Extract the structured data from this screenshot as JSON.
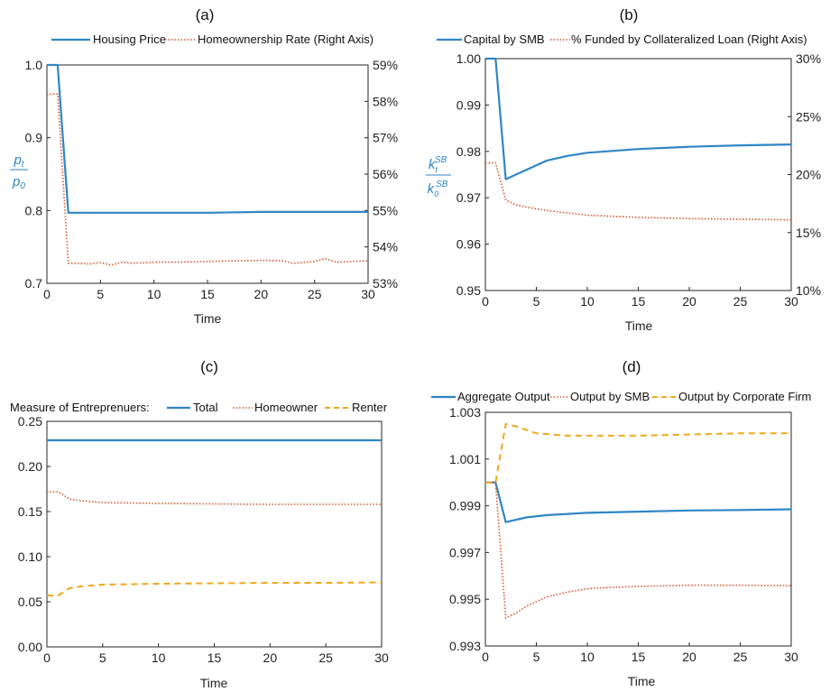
{
  "chart_data": [
    {
      "id": "a",
      "type": "line",
      "panel_label": "(a)",
      "xlabel": "Time",
      "ylabel": "p_t / p_0",
      "xlim": [
        0,
        30
      ],
      "xticks": [
        "0",
        "5",
        "10",
        "15",
        "20",
        "25",
        "30"
      ],
      "ylim": [
        0.7,
        1.0
      ],
      "yticks": [
        "0.7",
        "0.8",
        "0.9",
        "1.0"
      ],
      "y2lim": [
        53,
        59
      ],
      "y2ticks": [
        "53%",
        "54%",
        "55%",
        "56%",
        "57%",
        "58%",
        "59%"
      ],
      "legend": "top",
      "series": [
        {
          "name": "Housing Price",
          "axis": "left",
          "style": "solid",
          "color": "#2f86c6",
          "x": [
            0,
            1,
            2,
            5,
            10,
            15,
            20,
            25,
            30
          ],
          "y": [
            1.0,
            1.0,
            0.797,
            0.797,
            0.797,
            0.797,
            0.798,
            0.798,
            0.798
          ]
        },
        {
          "name": "Homeownership Rate (Right Axis)",
          "axis": "right",
          "style": "dotted",
          "color": "#d9582b",
          "x": [
            0,
            1,
            2,
            3,
            4,
            5,
            6,
            7,
            8,
            10,
            12,
            15,
            18,
            20,
            22,
            23,
            25,
            26,
            27,
            30
          ],
          "y": [
            58.2,
            58.2,
            53.55,
            53.55,
            53.53,
            53.57,
            53.5,
            53.58,
            53.55,
            53.58,
            53.58,
            53.6,
            53.62,
            53.63,
            53.62,
            53.55,
            53.6,
            53.68,
            53.58,
            53.62
          ]
        }
      ]
    },
    {
      "id": "b",
      "type": "line",
      "panel_label": "(b)",
      "xlabel": "Time",
      "ylabel": "k_t^SB / k_0^SB",
      "xlim": [
        0,
        30
      ],
      "xticks": [
        "0",
        "5",
        "10",
        "15",
        "20",
        "25",
        "30"
      ],
      "ylim": [
        0.95,
        1.0
      ],
      "yticks": [
        "0.95",
        "0.96",
        "0.97",
        "0.98",
        "0.99",
        "1.00"
      ],
      "y2lim": [
        10,
        30
      ],
      "y2ticks": [
        "10%",
        "15%",
        "20%",
        "25%",
        "30%"
      ],
      "legend": "top",
      "series": [
        {
          "name": "Capital by SMB",
          "axis": "left",
          "style": "solid",
          "color": "#2f86c6",
          "x": [
            0,
            1,
            2,
            4,
            6,
            8,
            10,
            15,
            20,
            25,
            30
          ],
          "y": [
            1.0,
            1.0,
            0.974,
            0.976,
            0.978,
            0.979,
            0.9797,
            0.9805,
            0.981,
            0.9813,
            0.9815
          ]
        },
        {
          "name": "% Funded by Collateralized Loan (Right Axis)",
          "axis": "right",
          "style": "dotted",
          "color": "#d9582b",
          "x": [
            0,
            1,
            2,
            3,
            4,
            6,
            8,
            10,
            15,
            20,
            25,
            30
          ],
          "y": [
            21.0,
            21.0,
            17.8,
            17.4,
            17.2,
            16.9,
            16.7,
            16.5,
            16.3,
            16.2,
            16.15,
            16.1
          ]
        }
      ]
    },
    {
      "id": "c",
      "type": "line",
      "panel_label": "(c)",
      "xlabel": "Time",
      "ylabel": "",
      "xlim": [
        0,
        30
      ],
      "xticks": [
        "0",
        "5",
        "10",
        "15",
        "20",
        "25",
        "30"
      ],
      "ylim": [
        0,
        0.25
      ],
      "yticks": [
        "0.00",
        "0.05",
        "0.10",
        "0.15",
        "0.20",
        "0.25"
      ],
      "legend_title": "Measure of Entreprenuers:",
      "legend": "top",
      "series": [
        {
          "name": "Total",
          "axis": "left",
          "style": "solid",
          "color": "#2f86c6",
          "x": [
            0,
            30
          ],
          "y": [
            0.229,
            0.229
          ]
        },
        {
          "name": "Homeowner",
          "axis": "left",
          "style": "dotted",
          "color": "#d9582b",
          "x": [
            0,
            1,
            2,
            3,
            5,
            10,
            15,
            20,
            25,
            30
          ],
          "y": [
            0.172,
            0.172,
            0.164,
            0.162,
            0.16,
            0.159,
            0.1585,
            0.158,
            0.158,
            0.158
          ]
        },
        {
          "name": "Renter",
          "axis": "left",
          "style": "dashed",
          "color": "#f0a81c",
          "x": [
            0,
            1,
            2,
            3,
            5,
            10,
            15,
            20,
            25,
            30
          ],
          "y": [
            0.057,
            0.057,
            0.065,
            0.067,
            0.069,
            0.07,
            0.0705,
            0.071,
            0.071,
            0.0715
          ]
        }
      ]
    },
    {
      "id": "d",
      "type": "line",
      "panel_label": "(d)",
      "xlabel": "Time",
      "ylabel": "",
      "xlim": [
        0,
        30
      ],
      "xticks": [
        "0",
        "5",
        "10",
        "15",
        "20",
        "25",
        "30"
      ],
      "ylim": [
        0.993,
        1.003
      ],
      "yticks": [
        "0.993",
        "0.995",
        "0.997",
        "0.999",
        "1.001",
        "1.003"
      ],
      "legend": "top",
      "series": [
        {
          "name": "Aggregate Output",
          "axis": "left",
          "style": "solid",
          "color": "#2f86c6",
          "x": [
            0,
            1,
            2,
            4,
            6,
            10,
            15,
            20,
            25,
            30
          ],
          "y": [
            1.0,
            1.0,
            0.9983,
            0.9985,
            0.9986,
            0.9987,
            0.99875,
            0.9988,
            0.99882,
            0.99885
          ]
        },
        {
          "name": "Output by SMB",
          "axis": "left",
          "style": "dotted",
          "color": "#d9582b",
          "x": [
            0,
            1,
            2,
            3,
            4,
            5,
            6,
            8,
            10,
            12,
            15,
            20,
            25,
            30
          ],
          "y": [
            1.0,
            1.0,
            0.9942,
            0.9944,
            0.9947,
            0.9949,
            0.9951,
            0.9953,
            0.99545,
            0.9955,
            0.99555,
            0.9956,
            0.9956,
            0.99558
          ]
        },
        {
          "name": "Output by Corporate Firm",
          "axis": "left",
          "style": "dashed",
          "color": "#f0a81c",
          "x": [
            0,
            1,
            2,
            3,
            5,
            8,
            10,
            15,
            20,
            25,
            30
          ],
          "y": [
            1.0,
            1.0,
            1.0025,
            1.0024,
            1.0021,
            1.002,
            1.002,
            1.002,
            1.00205,
            1.0021,
            1.0021
          ]
        }
      ]
    }
  ]
}
